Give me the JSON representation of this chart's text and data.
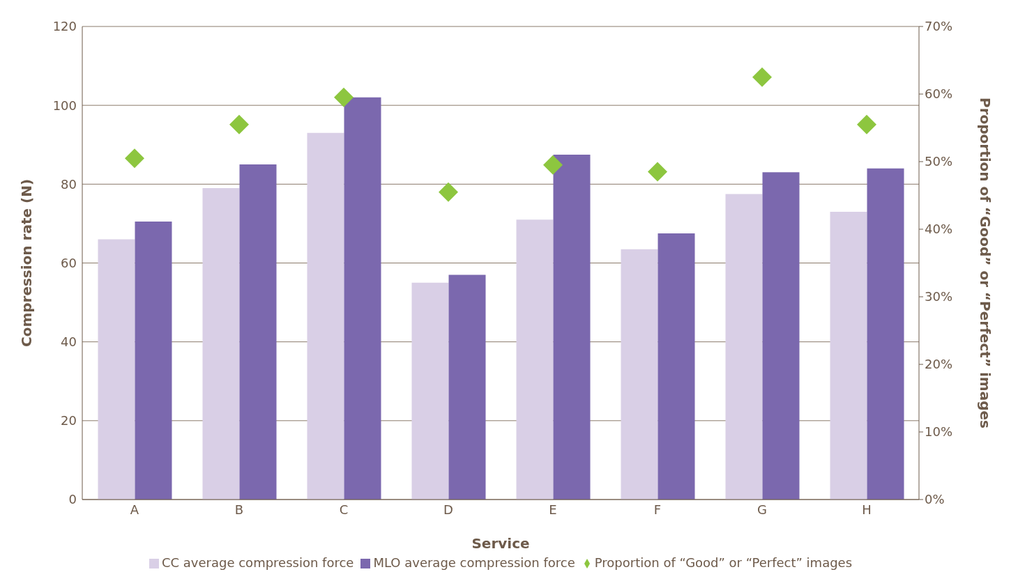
{
  "chart_data": {
    "type": "bar",
    "xlabel": "Service",
    "ylabel": "Compression rate (N)",
    "y2label": "Proportion of  “Good” or “Perfect” images",
    "categories": [
      "A",
      "B",
      "C",
      "D",
      "E",
      "F",
      "G",
      "H"
    ],
    "series": [
      {
        "name": "CC average compression force",
        "color": "#d9cfe6",
        "values": [
          66,
          79,
          93,
          55,
          71,
          63.5,
          77.5,
          73
        ]
      },
      {
        "name": "MLO average compression force",
        "color": "#7b68ae",
        "values": [
          70.5,
          85,
          102,
          57,
          87.5,
          67.5,
          83,
          84
        ]
      },
      {
        "name": "Proportion of  “Good” or “Perfect” images",
        "type": "scatter",
        "axis": "y2",
        "marker": "diamond",
        "color": "#8dc63f",
        "values": [
          50.5,
          55.5,
          59.5,
          45.5,
          49.5,
          48.5,
          62.5,
          55.5
        ]
      }
    ],
    "ylim": [
      0,
      120
    ],
    "yticks": [
      0,
      20,
      40,
      60,
      80,
      100,
      120
    ],
    "y2lim": [
      0,
      70
    ],
    "y2ticks": [
      {
        "value": 0,
        "label": "0%"
      },
      {
        "value": 10,
        "label": "10%"
      },
      {
        "value": 20,
        "label": "20%"
      },
      {
        "value": 30,
        "label": "30%"
      },
      {
        "value": 40,
        "label": "40%"
      },
      {
        "value": 50,
        "label": "50%"
      },
      {
        "value": 60,
        "label": "60%"
      },
      {
        "value": 70,
        "label": "70%"
      }
    ],
    "grid": "y",
    "legend": "bottom"
  }
}
